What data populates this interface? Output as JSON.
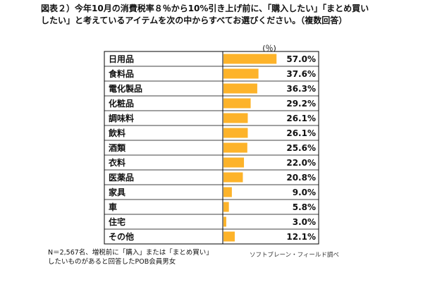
{
  "title": "図表２）今年10月の消費税率８％から10%引き上げ前に、「購入したい」「まとめ買い\nしたい」と考えているアイテムを次の中からすべてお選びください。（複数回答）",
  "unit_label": "(％)",
  "note": "N＝2,567名、増税前に「購入」または「まとめ買い」\nしたいものがあると回答したPOB会員男女",
  "source": "ソフトブレーン・フィールド調べ",
  "colors": {
    "bar": "#FDB32A",
    "border": "#000000"
  },
  "chart_data": {
    "type": "bar",
    "orientation": "horizontal",
    "categories": [
      "日用品",
      "食料品",
      "電化製品",
      "化粧品",
      "調味料",
      "飲料",
      "酒類",
      "衣料",
      "医薬品",
      "家具",
      "車",
      "住宅",
      "その他"
    ],
    "values": [
      57.0,
      37.6,
      36.3,
      29.2,
      26.1,
      26.1,
      25.6,
      22.0,
      20.8,
      9.0,
      5.8,
      3.0,
      12.1
    ],
    "value_labels": [
      "57.0%",
      "37.6%",
      "36.3%",
      "29.2%",
      "26.1%",
      "26.1%",
      "25.6%",
      "22.0%",
      "20.8%",
      "9.0%",
      "5.8%",
      "3.0%",
      "12.1%"
    ],
    "xlim": [
      0,
      100
    ],
    "grid": true,
    "title": "",
    "xlabel": "(％)",
    "ylabel": ""
  }
}
